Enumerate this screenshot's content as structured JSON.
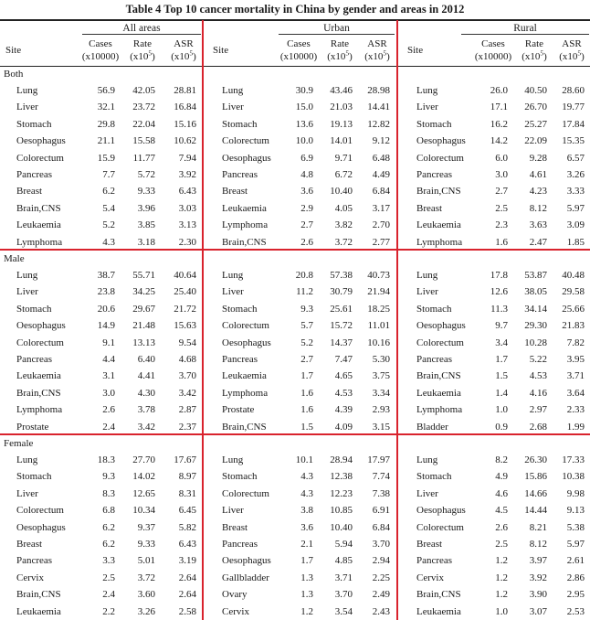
{
  "title": "Table 4   Top 10 cancer mortality in China by gender and areas in 2012",
  "groups": [
    "All areas",
    "Urban",
    "Rural"
  ],
  "columns": {
    "site": "Site",
    "cases": [
      "Cases",
      "(x10000)"
    ],
    "rate": [
      "Rate",
      "(x10",
      "5",
      ")"
    ],
    "asr": [
      "ASR",
      "(x10",
      "5",
      ")"
    ]
  },
  "accent_color": "#d9232d",
  "sections": [
    {
      "label": "Both",
      "rows": [
        [
          [
            "Lung",
            "56.9",
            "42.05",
            "28.81"
          ],
          [
            "Lung",
            "30.9",
            "43.46",
            "28.98"
          ],
          [
            "Lung",
            "26.0",
            "40.50",
            "28.60"
          ]
        ],
        [
          [
            "Liver",
            "32.1",
            "23.72",
            "16.84"
          ],
          [
            "Liver",
            "15.0",
            "21.03",
            "14.41"
          ],
          [
            "Liver",
            "17.1",
            "26.70",
            "19.77"
          ]
        ],
        [
          [
            "Stomach",
            "29.8",
            "22.04",
            "15.16"
          ],
          [
            "Stomach",
            "13.6",
            "19.13",
            "12.82"
          ],
          [
            "Stomach",
            "16.2",
            "25.27",
            "17.84"
          ]
        ],
        [
          [
            "Oesophagus",
            "21.1",
            "15.58",
            "10.62"
          ],
          [
            "Colorectum",
            "10.0",
            "14.01",
            "9.12"
          ],
          [
            "Oesophagus",
            "14.2",
            "22.09",
            "15.35"
          ]
        ],
        [
          [
            "Colorectum",
            "15.9",
            "11.77",
            "7.94"
          ],
          [
            "Oesophagus",
            "6.9",
            "9.71",
            "6.48"
          ],
          [
            "Colorectum",
            "6.0",
            "9.28",
            "6.57"
          ]
        ],
        [
          [
            "Pancreas",
            "7.7",
            "5.72",
            "3.92"
          ],
          [
            "Pancreas",
            "4.8",
            "6.72",
            "4.49"
          ],
          [
            "Pancreas",
            "3.0",
            "4.61",
            "3.26"
          ]
        ],
        [
          [
            "Breast",
            "6.2",
            "9.33",
            "6.43"
          ],
          [
            "Breast",
            "3.6",
            "10.40",
            "6.84"
          ],
          [
            "Brain,CNS",
            "2.7",
            "4.23",
            "3.33"
          ]
        ],
        [
          [
            "Brain,CNS",
            "5.4",
            "3.96",
            "3.03"
          ],
          [
            "Leukaemia",
            "2.9",
            "4.05",
            "3.17"
          ],
          [
            "Breast",
            "2.5",
            "8.12",
            "5.97"
          ]
        ],
        [
          [
            "Leukaemia",
            "5.2",
            "3.85",
            "3.13"
          ],
          [
            "Lymphoma",
            "2.7",
            "3.82",
            "2.70"
          ],
          [
            "Leukaemia",
            "2.3",
            "3.63",
            "3.09"
          ]
        ],
        [
          [
            "Lymphoma",
            "4.3",
            "3.18",
            "2.30"
          ],
          [
            "Brain,CNS",
            "2.6",
            "3.72",
            "2.77"
          ],
          [
            "Lymphoma",
            "1.6",
            "2.47",
            "1.85"
          ]
        ]
      ]
    },
    {
      "label": "Male",
      "rows": [
        [
          [
            "Lung",
            "38.7",
            "55.71",
            "40.64"
          ],
          [
            "Lung",
            "20.8",
            "57.38",
            "40.73"
          ],
          [
            "Lung",
            "17.8",
            "53.87",
            "40.48"
          ]
        ],
        [
          [
            "Liver",
            "23.8",
            "34.25",
            "25.40"
          ],
          [
            "Liver",
            "11.2",
            "30.79",
            "21.94"
          ],
          [
            "Liver",
            "12.6",
            "38.05",
            "29.58"
          ]
        ],
        [
          [
            "Stomach",
            "20.6",
            "29.67",
            "21.72"
          ],
          [
            "Stomach",
            "9.3",
            "25.61",
            "18.25"
          ],
          [
            "Stomach",
            "11.3",
            "34.14",
            "25.66"
          ]
        ],
        [
          [
            "Oesophagus",
            "14.9",
            "21.48",
            "15.63"
          ],
          [
            "Colorectum",
            "5.7",
            "15.72",
            "11.01"
          ],
          [
            "Oesophagus",
            "9.7",
            "29.30",
            "21.83"
          ]
        ],
        [
          [
            "Colorectum",
            "9.1",
            "13.13",
            "9.54"
          ],
          [
            "Oesophagus",
            "5.2",
            "14.37",
            "10.16"
          ],
          [
            "Colorectum",
            "3.4",
            "10.28",
            "7.82"
          ]
        ],
        [
          [
            "Pancreas",
            "4.4",
            "6.40",
            "4.68"
          ],
          [
            "Pancreas",
            "2.7",
            "7.47",
            "5.30"
          ],
          [
            "Pancreas",
            "1.7",
            "5.22",
            "3.95"
          ]
        ],
        [
          [
            "Leukaemia",
            "3.1",
            "4.41",
            "3.70"
          ],
          [
            "Leukaemia",
            "1.7",
            "4.65",
            "3.75"
          ],
          [
            "Brain,CNS",
            "1.5",
            "4.53",
            "3.71"
          ]
        ],
        [
          [
            "Brain,CNS",
            "3.0",
            "4.30",
            "3.42"
          ],
          [
            "Lymphoma",
            "1.6",
            "4.53",
            "3.34"
          ],
          [
            "Leukaemia",
            "1.4",
            "4.16",
            "3.64"
          ]
        ],
        [
          [
            "Lymphoma",
            "2.6",
            "3.78",
            "2.87"
          ],
          [
            "Prostate",
            "1.6",
            "4.39",
            "2.93"
          ],
          [
            "Lymphoma",
            "1.0",
            "2.97",
            "2.33"
          ]
        ],
        [
          [
            "Prostate",
            "2.4",
            "3.42",
            "2.37"
          ],
          [
            "Brain,CNS",
            "1.5",
            "4.09",
            "3.15"
          ],
          [
            "Bladder",
            "0.9",
            "2.68",
            "1.99"
          ]
        ]
      ]
    },
    {
      "label": "Female",
      "rows": [
        [
          [
            "Lung",
            "18.3",
            "27.70",
            "17.67"
          ],
          [
            "Lung",
            "10.1",
            "28.94",
            "17.97"
          ],
          [
            "Lung",
            "8.2",
            "26.30",
            "17.33"
          ]
        ],
        [
          [
            "Stomach",
            "9.3",
            "14.02",
            "8.97"
          ],
          [
            "Stomach",
            "4.3",
            "12.38",
            "7.74"
          ],
          [
            "Stomach",
            "4.9",
            "15.86",
            "10.38"
          ]
        ],
        [
          [
            "Liver",
            "8.3",
            "12.65",
            "8.31"
          ],
          [
            "Colorectum",
            "4.3",
            "12.23",
            "7.38"
          ],
          [
            "Liver",
            "4.6",
            "14.66",
            "9.98"
          ]
        ],
        [
          [
            "Colorectum",
            "6.8",
            "10.34",
            "6.45"
          ],
          [
            "Liver",
            "3.8",
            "10.85",
            "6.91"
          ],
          [
            "Oesophagus",
            "4.5",
            "14.44",
            "9.13"
          ]
        ],
        [
          [
            "Oesophagus",
            "6.2",
            "9.37",
            "5.82"
          ],
          [
            "Breast",
            "3.6",
            "10.40",
            "6.84"
          ],
          [
            "Colorectum",
            "2.6",
            "8.21",
            "5.38"
          ]
        ],
        [
          [
            "Breast",
            "6.2",
            "9.33",
            "6.43"
          ],
          [
            "Pancreas",
            "2.1",
            "5.94",
            "3.70"
          ],
          [
            "Breast",
            "2.5",
            "8.12",
            "5.97"
          ]
        ],
        [
          [
            "Pancreas",
            "3.3",
            "5.01",
            "3.19"
          ],
          [
            "Oesophagus",
            "1.7",
            "4.85",
            "2.94"
          ],
          [
            "Pancreas",
            "1.2",
            "3.97",
            "2.61"
          ]
        ],
        [
          [
            "Cervix",
            "2.5",
            "3.72",
            "2.64"
          ],
          [
            "Gallbladder",
            "1.3",
            "3.71",
            "2.25"
          ],
          [
            "Cervix",
            "1.2",
            "3.92",
            "2.86"
          ]
        ],
        [
          [
            "Brain,CNS",
            "2.4",
            "3.60",
            "2.64"
          ],
          [
            "Ovary",
            "1.3",
            "3.70",
            "2.49"
          ],
          [
            "Brain,CNS",
            "1.2",
            "3.90",
            "2.95"
          ]
        ],
        [
          [
            "Leukaemia",
            "2.2",
            "3.26",
            "2.58"
          ],
          [
            "Cervix",
            "1.2",
            "3.54",
            "2.43"
          ],
          [
            "Leukaemia",
            "1.0",
            "3.07",
            "2.53"
          ]
        ]
      ]
    }
  ]
}
